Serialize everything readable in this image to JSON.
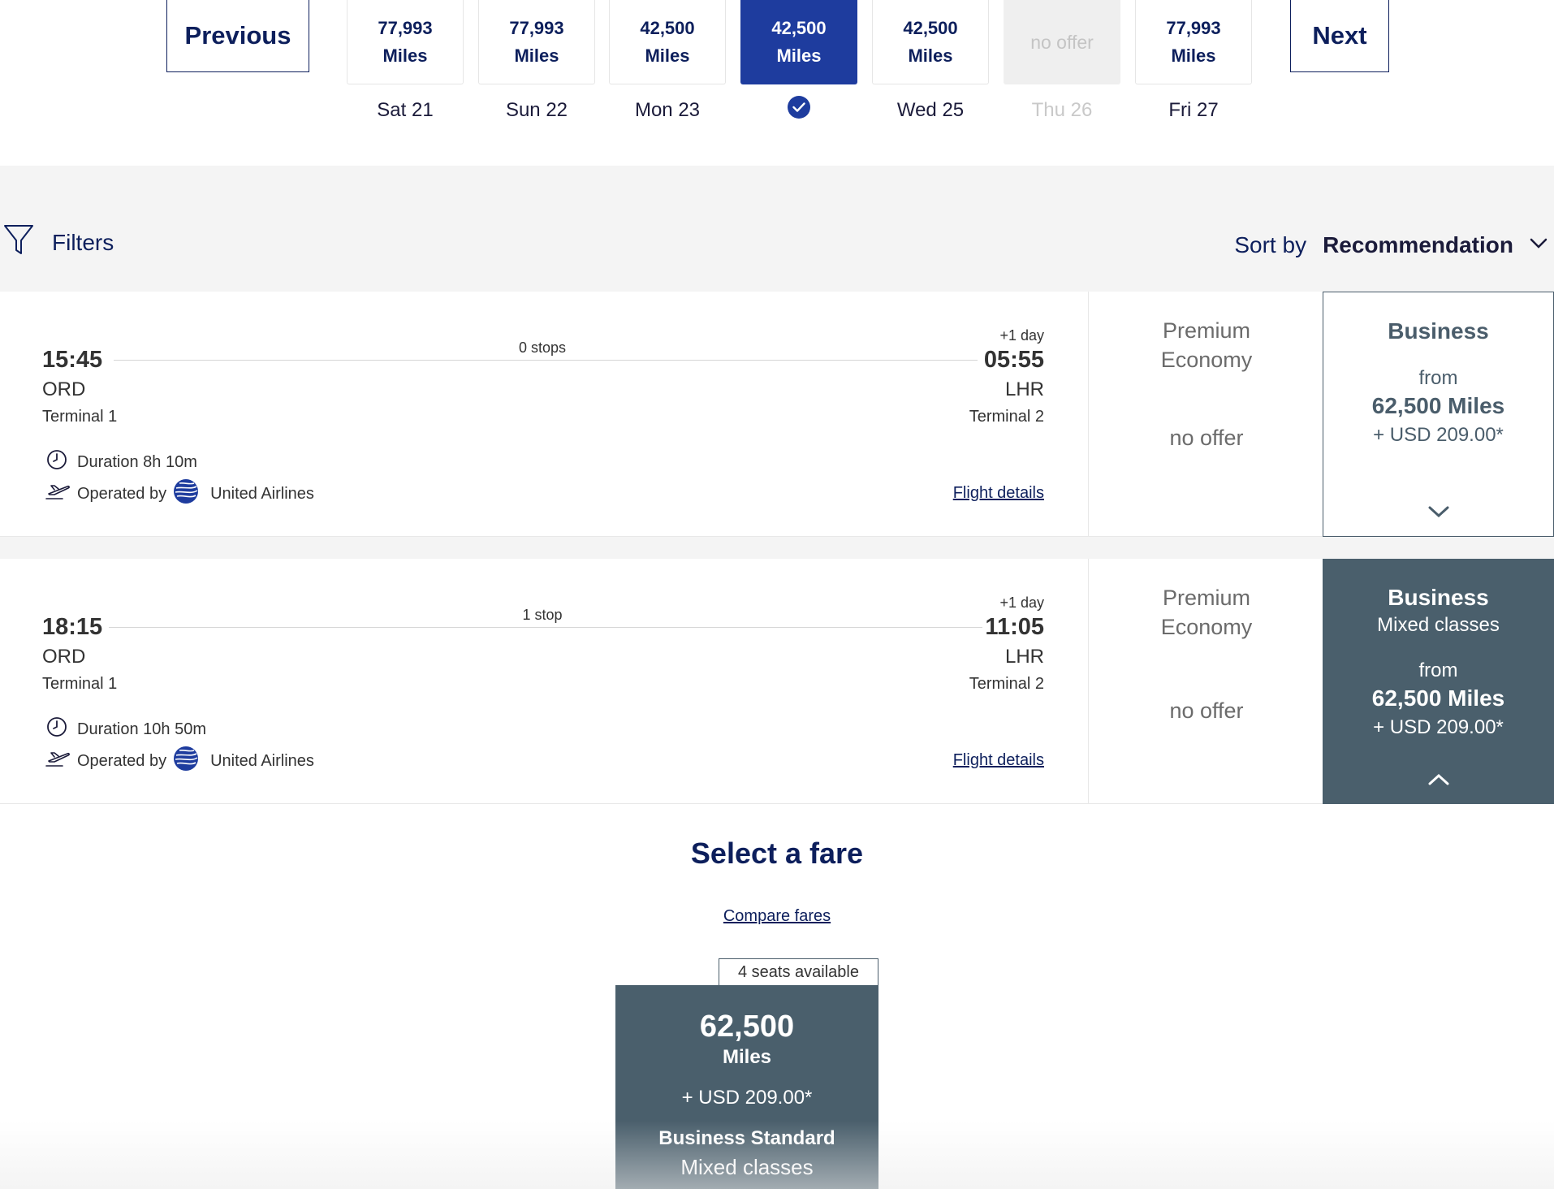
{
  "date_nav": {
    "previous_label": "Previous",
    "next_label": "Next",
    "days": [
      {
        "price": "77,993",
        "unit": "Miles",
        "label": "Sat 21"
      },
      {
        "price": "77,993",
        "unit": "Miles",
        "label": "Sun 22"
      },
      {
        "price": "42,500",
        "unit": "Miles",
        "label": "Mon 23"
      },
      {
        "price": "42,500",
        "unit": "Miles",
        "label": ""
      },
      {
        "price": "42,500",
        "unit": "Miles",
        "label": "Wed 25"
      },
      {
        "price": "no offer",
        "unit": "",
        "label": "Thu 26"
      },
      {
        "price": "77,993",
        "unit": "Miles",
        "label": "Fri 27"
      }
    ]
  },
  "toolbar": {
    "filters_label": "Filters",
    "sort_label": "Sort by",
    "sort_value": "Recommendation"
  },
  "flights": [
    {
      "dep_time": "15:45",
      "dep_airport": "ORD",
      "dep_terminal": "Terminal 1",
      "arr_day_offset": "+1 day",
      "arr_time": "05:55",
      "arr_airport": "LHR",
      "arr_terminal": "Terminal 2",
      "stops": "0 stops",
      "duration": "Duration 8h 10m",
      "operated_label": "Operated by",
      "airline": "United Airlines",
      "details_link": "Flight details",
      "premium_title_1": "Premium",
      "premium_title_2": "Economy",
      "premium_offer": "no offer",
      "business_title": "Business",
      "business_sub": "",
      "business_from": "from",
      "business_miles": "62,500 Miles",
      "business_usd": "+ USD 209.00*"
    },
    {
      "dep_time": "18:15",
      "dep_airport": "ORD",
      "dep_terminal": "Terminal 1",
      "arr_day_offset": "+1 day",
      "arr_time": "11:05",
      "arr_airport": "LHR",
      "arr_terminal": "Terminal 2",
      "stops": "1 stop",
      "duration": "Duration 10h 50m",
      "operated_label": "Operated by",
      "airline": "United Airlines",
      "details_link": "Flight details",
      "premium_title_1": "Premium",
      "premium_title_2": "Economy",
      "premium_offer": "no offer",
      "business_title": "Business",
      "business_sub": "Mixed classes",
      "business_from": "from",
      "business_miles": "62,500 Miles",
      "business_usd": "+ USD 209.00*"
    }
  ],
  "fare_select": {
    "title": "Select a fare",
    "compare_link": "Compare fares",
    "seats_badge": "4 seats available",
    "card": {
      "miles": "62,500",
      "miles_unit": "Miles",
      "usd": "+ USD 209.00*",
      "name": "Business Standard",
      "sub": "Mixed classes"
    }
  },
  "colors": {
    "navy": "#0d1f5c",
    "selected_blue": "#1e3c9e",
    "slate": "#4a5f6c"
  },
  "icons": [
    "filter-icon",
    "chevron-down-icon",
    "checkmark-icon",
    "clock-icon",
    "plane-icon",
    "united-globe-icon",
    "chevron-up-icon"
  ]
}
